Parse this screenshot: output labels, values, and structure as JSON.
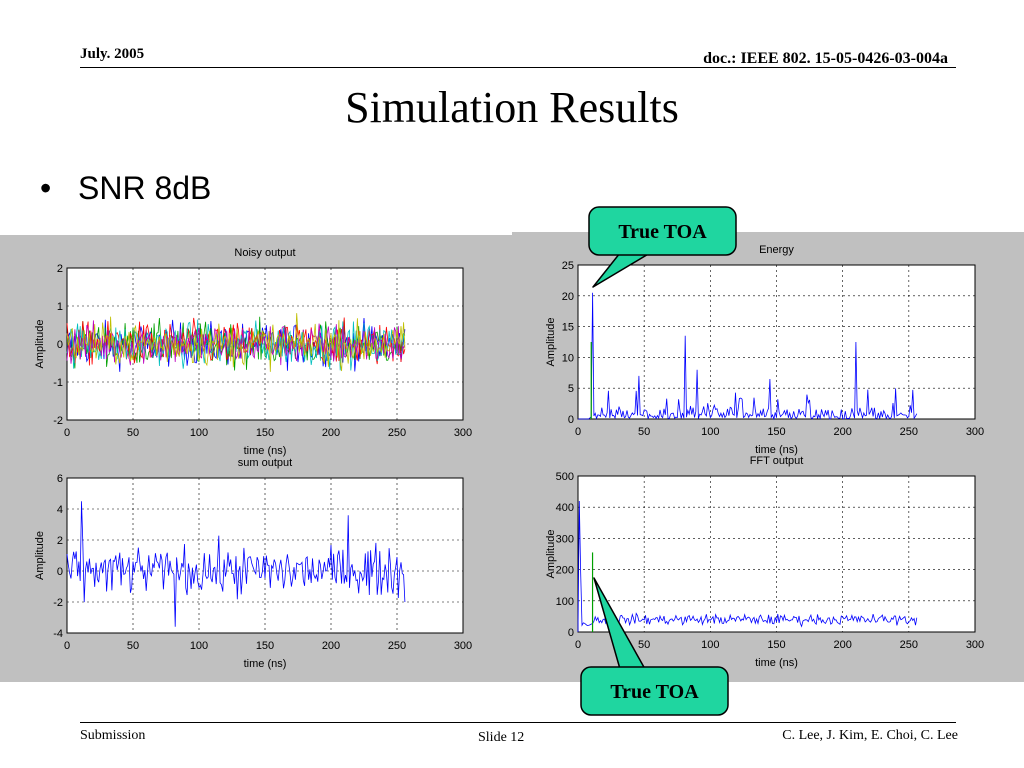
{
  "header": {
    "date": "July. 2005",
    "doc_id": "doc.: IEEE 802. 15-05-0426-03-004a"
  },
  "slide": {
    "title": "Simulation Results",
    "bullet": "SNR 8dB"
  },
  "callouts": {
    "top": "True TOA",
    "bottom": "True TOA"
  },
  "footer": {
    "left": "Submission",
    "center": "Slide 12",
    "right": "C. Lee, J. Kim, E. Choi, C. Lee"
  },
  "colors": {
    "panel_bg": "#c0c0c0",
    "callout_fill": "#1fd6a0",
    "trace_blue": "#0000ff",
    "trace_green": "#00a000"
  },
  "chart_data": [
    {
      "type": "line",
      "title": "Noisy output",
      "xlabel": "time (ns)",
      "ylabel": "Amplitude",
      "xlim": [
        0,
        300
      ],
      "ylim": [
        -2,
        2
      ],
      "xticks": [
        0,
        50,
        100,
        150,
        200,
        250,
        300
      ],
      "yticks": [
        -2,
        -1,
        0,
        1,
        2
      ],
      "grid": true,
      "note": "many overlapping noisy multicolored traces spanning roughly -1 to 1 over 0-255 ns",
      "series_count": 6,
      "x_range": [
        0,
        256
      ]
    },
    {
      "type": "line",
      "title": "Energy",
      "xlabel": "time (ns)",
      "ylabel": "Amplitude",
      "xlim": [
        0,
        300
      ],
      "ylim": [
        0,
        25
      ],
      "xticks": [
        0,
        50,
        100,
        150,
        200,
        250,
        300
      ],
      "yticks": [
        0,
        5,
        10,
        15,
        20,
        25
      ],
      "grid": true,
      "peaks": [
        {
          "x": 11,
          "y": 20.5
        },
        {
          "x": 10,
          "y": 12.5
        },
        {
          "x": 81,
          "y": 13.5
        },
        {
          "x": 210,
          "y": 12.5
        },
        {
          "x": 46,
          "y": 7
        },
        {
          "x": 90,
          "y": 8
        },
        {
          "x": 145,
          "y": 6.5
        }
      ]
    },
    {
      "type": "line",
      "title": "sum output",
      "xlabel": "time (ns)",
      "ylabel": "Amplitude",
      "xlim": [
        0,
        300
      ],
      "ylim": [
        -4,
        6
      ],
      "xticks": [
        0,
        50,
        100,
        150,
        200,
        250,
        300
      ],
      "yticks": [
        -4,
        -2,
        0,
        2,
        4,
        6
      ],
      "grid": true,
      "peaks": [
        {
          "x": 11,
          "y": 4.5
        },
        {
          "x": 213,
          "y": 3.6
        },
        {
          "x": 82,
          "y": -3.6
        },
        {
          "x": 256,
          "y": -2
        }
      ]
    },
    {
      "type": "line",
      "title": "FFT output",
      "xlabel": "time (ns)",
      "ylabel": "Amplitude",
      "xlim": [
        0,
        300
      ],
      "ylim": [
        0,
        500
      ],
      "xticks": [
        0,
        50,
        100,
        150,
        200,
        250,
        300
      ],
      "yticks": [
        0,
        100,
        200,
        300,
        400,
        500
      ],
      "grid": true,
      "peaks": [
        {
          "x": 1,
          "y": 420
        },
        {
          "x": 11,
          "y": 255
        },
        {
          "x": 2,
          "y": 200
        }
      ],
      "baseline_level": 40
    }
  ]
}
